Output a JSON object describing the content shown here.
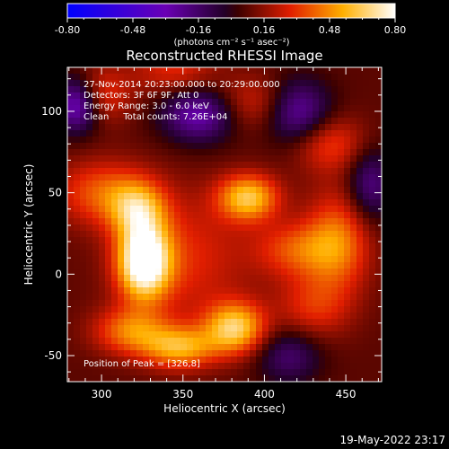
{
  "chart_data": {
    "type": "heatmap",
    "title": "Reconstructed RHESSI Image",
    "xlabel": "Heliocentric X (arcsec)",
    "ylabel": "Heliocentric Y (arcsec)",
    "xlim": [
      279,
      472
    ],
    "ylim": [
      -66,
      127
    ],
    "xticks": [
      300,
      350,
      400,
      450
    ],
    "yticks": [
      100,
      50,
      0,
      -50
    ],
    "colorbar": {
      "ticks": [
        "-0.80",
        "-0.48",
        "-0.16",
        "0.16",
        "0.48",
        "0.80"
      ],
      "range": [
        -0.8,
        0.8
      ],
      "units": "(photons cm⁻² s⁻¹ asec⁻²)"
    },
    "annotations": [
      "27-Nov-2014 20:23:00.000 to 20:29:00.000",
      "Detectors: 3F 6F 9F, Att 0",
      "Energy Range: 3.0 - 6.0 keV",
      "Clean     Total counts: 7.26E+04"
    ],
    "peak_text": "Position of Peak = [326,8]",
    "sources": [
      {
        "x": 326,
        "y": 8,
        "sx": 11,
        "sy": 16,
        "amp": 0.8
      },
      {
        "x": 322,
        "y": 40,
        "sx": 12,
        "sy": 12,
        "amp": 0.4
      },
      {
        "x": 300,
        "y": 50,
        "sx": 20,
        "sy": 14,
        "amp": 0.3
      },
      {
        "x": 296,
        "y": 110,
        "sx": 14,
        "sy": 12,
        "amp": 0.3
      },
      {
        "x": 390,
        "y": 47,
        "sx": 13,
        "sy": 10,
        "amp": 0.52
      },
      {
        "x": 382,
        "y": -33,
        "sx": 13,
        "sy": 11,
        "amp": 0.55
      },
      {
        "x": 348,
        "y": -45,
        "sx": 16,
        "sy": 9,
        "amp": 0.45
      },
      {
        "x": 318,
        "y": -35,
        "sx": 16,
        "sy": 10,
        "amp": 0.35
      },
      {
        "x": 350,
        "y": 10,
        "sx": 28,
        "sy": 28,
        "amp": 0.22
      },
      {
        "x": 420,
        "y": 15,
        "sx": 18,
        "sy": 12,
        "amp": 0.28
      },
      {
        "x": 445,
        "y": 20,
        "sx": 14,
        "sy": 22,
        "amp": 0.35
      },
      {
        "x": 430,
        "y": -20,
        "sx": 16,
        "sy": 14,
        "amp": 0.22
      },
      {
        "x": 440,
        "y": 80,
        "sx": 16,
        "sy": 12,
        "amp": 0.26
      },
      {
        "x": 395,
        "y": 105,
        "sx": 18,
        "sy": 12,
        "amp": 0.22
      },
      {
        "x": 345,
        "y": 125,
        "sx": 18,
        "sy": 10,
        "amp": 0.22
      },
      {
        "x": 285,
        "y": 105,
        "sx": 10,
        "sy": 12,
        "amp": -0.55
      },
      {
        "x": 360,
        "y": 98,
        "sx": 16,
        "sy": 12,
        "amp": -0.4
      },
      {
        "x": 420,
        "y": 100,
        "sx": 14,
        "sy": 14,
        "amp": -0.4
      },
      {
        "x": 465,
        "y": 55,
        "sx": 10,
        "sy": 16,
        "amp": -0.3
      },
      {
        "x": 415,
        "y": -50,
        "sx": 14,
        "sy": 12,
        "amp": -0.25
      }
    ]
  },
  "footer": {
    "datetime": "19-May-2022 23:17"
  }
}
